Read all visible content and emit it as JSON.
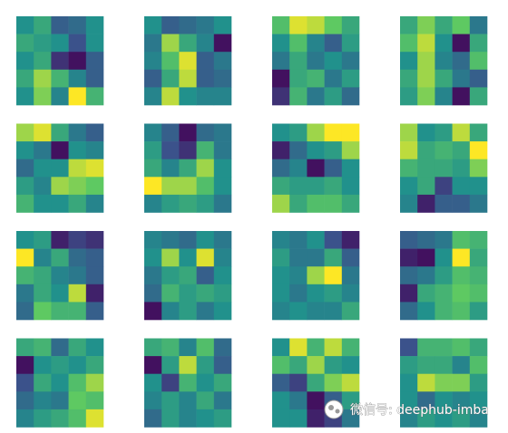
{
  "chart_data": [
    {
      "type": "heatmap",
      "colormap": "viridis",
      "clim": [
        0,
        1
      ],
      "values": [
        [
          0.5,
          0.6,
          0.3,
          0.35,
          0.5
        ],
        [
          0.6,
          0.55,
          0.5,
          0.25,
          0.5
        ],
        [
          0.5,
          0.6,
          0.15,
          0.05,
          0.3
        ],
        [
          0.6,
          0.85,
          0.65,
          0.45,
          0.3
        ],
        [
          0.5,
          0.8,
          0.45,
          1,
          0.65
        ]
      ]
    },
    {
      "type": "heatmap",
      "colormap": "viridis",
      "clim": [
        0,
        1
      ],
      "values": [
        [
          0.5,
          0.3,
          0.35,
          0.4,
          0.5
        ],
        [
          0.4,
          0.85,
          0.6,
          0.45,
          0.05
        ],
        [
          0.45,
          0.7,
          0.95,
          0.3,
          0.4
        ],
        [
          0.3,
          0.6,
          0.9,
          0.3,
          0.35
        ],
        [
          0.45,
          0.9,
          0.5,
          0.45,
          0.45
        ]
      ]
    },
    {
      "type": "heatmap",
      "colormap": "viridis",
      "clim": [
        0,
        1
      ],
      "values": [
        [
          0.7,
          0.95,
          0.9,
          0.75,
          0.6
        ],
        [
          0.5,
          0.7,
          0.45,
          0.3,
          0.55
        ],
        [
          0.4,
          0.6,
          0.4,
          0.5,
          0.4
        ],
        [
          0.05,
          0.6,
          0.65,
          0.4,
          0.55
        ],
        [
          0.15,
          0.65,
          0.4,
          0.55,
          0.35
        ]
      ]
    },
    {
      "type": "heatmap",
      "colormap": "viridis",
      "clim": [
        0,
        1
      ],
      "values": [
        [
          0.6,
          0.8,
          0.6,
          0.75,
          0.4
        ],
        [
          0.7,
          0.9,
          0.5,
          0.05,
          0.6
        ],
        [
          0.5,
          0.85,
          0.45,
          0.35,
          0.7
        ],
        [
          0.6,
          0.85,
          0.6,
          0.4,
          0.3
        ],
        [
          0.55,
          0.8,
          0.45,
          0.05,
          0.6
        ]
      ]
    },
    {
      "type": "heatmap",
      "colormap": "viridis",
      "clim": [
        0,
        1
      ],
      "values": [
        [
          0.85,
          0.95,
          0.6,
          0.4,
          0.3
        ],
        [
          0.5,
          0.4,
          0.05,
          0.5,
          0.45
        ],
        [
          0.35,
          0.5,
          0.5,
          0.9,
          0.95
        ],
        [
          0.55,
          0.45,
          0.85,
          0.8,
          0.75
        ],
        [
          0.65,
          0.5,
          0.5,
          0.6,
          0.45
        ]
      ]
    },
    {
      "type": "heatmap",
      "colormap": "viridis",
      "clim": [
        0,
        1
      ],
      "values": [
        [
          0.45,
          0.3,
          0.05,
          0.35,
          0.4
        ],
        [
          0.55,
          0.25,
          0.15,
          0.65,
          0.4
        ],
        [
          0.6,
          0.45,
          0.6,
          0.85,
          0.5
        ],
        [
          1,
          0.85,
          0.85,
          0.7,
          0.5
        ],
        [
          0.45,
          0.55,
          0.6,
          0.55,
          0.4
        ]
      ]
    },
    {
      "type": "heatmap",
      "colormap": "viridis",
      "clim": [
        0,
        1
      ],
      "values": [
        [
          0.5,
          0.55,
          0.85,
          1,
          1
        ],
        [
          0.1,
          0.35,
          0.5,
          0.55,
          0.85
        ],
        [
          0.35,
          0.45,
          0.05,
          0.3,
          0.5
        ],
        [
          0.6,
          0.55,
          0.55,
          0.6,
          0.5
        ],
        [
          0.85,
          0.6,
          0.7,
          0.7,
          0.6
        ]
      ]
    },
    {
      "type": "heatmap",
      "colormap": "viridis",
      "clim": [
        0,
        1
      ],
      "values": [
        [
          0.85,
          0.5,
          0.55,
          0.9,
          0.6
        ],
        [
          0.9,
          0.6,
          0.65,
          0.6,
          1
        ],
        [
          0.65,
          0.6,
          0.6,
          0.55,
          0.8
        ],
        [
          0.5,
          0.6,
          0.2,
          0.5,
          0.5
        ],
        [
          0.45,
          0.1,
          0.3,
          0.3,
          0.4
        ]
      ]
    },
    {
      "type": "heatmap",
      "colormap": "viridis",
      "clim": [
        0,
        1
      ],
      "values": [
        [
          0.5,
          0.55,
          0.1,
          0.2,
          0.15
        ],
        [
          1,
          0.45,
          0.6,
          0.35,
          0.3
        ],
        [
          0.65,
          0.6,
          0.45,
          0.4,
          0.3
        ],
        [
          0.4,
          0.6,
          0.5,
          0.9,
          0.1
        ],
        [
          0.35,
          0.75,
          0.65,
          0.65,
          0.3
        ]
      ]
    },
    {
      "type": "heatmap",
      "colormap": "viridis",
      "clim": [
        0,
        1
      ],
      "values": [
        [
          0.45,
          0.4,
          0.35,
          0.5,
          0.4
        ],
        [
          0.5,
          0.85,
          0.5,
          0.95,
          0.45
        ],
        [
          0.4,
          0.55,
          0.6,
          0.3,
          0.5
        ],
        [
          0.35,
          0.65,
          0.55,
          0.6,
          0.55
        ],
        [
          0.05,
          0.45,
          0.55,
          0.4,
          0.5
        ]
      ]
    },
    {
      "type": "heatmap",
      "colormap": "viridis",
      "clim": [
        0,
        1
      ],
      "values": [
        [
          0.45,
          0.4,
          0.5,
          0.25,
          0.1
        ],
        [
          0.55,
          0.4,
          0.4,
          0.6,
          0.3
        ],
        [
          0.5,
          0.45,
          0.85,
          1,
          0.4
        ],
        [
          0.5,
          0.4,
          0.5,
          0.55,
          0.45
        ],
        [
          0.45,
          0.5,
          0.45,
          0.45,
          0.6
        ]
      ]
    },
    {
      "type": "heatmap",
      "colormap": "viridis",
      "clim": [
        0,
        1
      ],
      "values": [
        [
          0.3,
          0.35,
          0.4,
          0.7,
          0.65
        ],
        [
          0.1,
          0.05,
          0.5,
          1,
          0.6
        ],
        [
          0.35,
          0.4,
          0.55,
          0.7,
          0.65
        ],
        [
          0.1,
          0.6,
          0.65,
          0.75,
          0.7
        ],
        [
          0.35,
          0.5,
          0.65,
          0.7,
          0.55
        ]
      ]
    },
    {
      "type": "heatmap",
      "colormap": "viridis",
      "clim": [
        0,
        1
      ],
      "values": [
        [
          0.6,
          0.65,
          0.35,
          0.6,
          0.5
        ],
        [
          0.05,
          0.5,
          0.55,
          0.5,
          0.6
        ],
        [
          0.25,
          0.6,
          0.5,
          0.7,
          0.85
        ],
        [
          0.35,
          0.45,
          0.4,
          0.75,
          0.7
        ],
        [
          0.45,
          0.55,
          0.6,
          0.7,
          0.95
        ]
      ]
    },
    {
      "type": "heatmap",
      "colormap": "viridis",
      "clim": [
        0,
        1
      ],
      "values": [
        [
          0.6,
          0.65,
          0.45,
          0.7,
          0.35
        ],
        [
          0.05,
          0.55,
          0.9,
          0.55,
          0.3
        ],
        [
          0.5,
          0.2,
          0.65,
          0.5,
          0.6
        ],
        [
          0.45,
          0.55,
          0.45,
          0.6,
          0.4
        ],
        [
          0.35,
          0.55,
          0.45,
          0.5,
          0.55
        ]
      ]
    },
    {
      "type": "heatmap",
      "colormap": "viridis",
      "clim": [
        0,
        1
      ],
      "values": [
        [
          0.5,
          0.95,
          0.65,
          0.9,
          0.65
        ],
        [
          0.7,
          0.6,
          0.85,
          0.55,
          0.5
        ],
        [
          0.3,
          0.2,
          0.6,
          0.8,
          0.9
        ],
        [
          0.5,
          0.4,
          0.05,
          0.3,
          0.55
        ],
        [
          0.5,
          0.5,
          0.1,
          0.2,
          0.4
        ]
      ]
    },
    {
      "type": "heatmap",
      "colormap": "viridis",
      "clim": [
        0,
        1
      ],
      "values": [
        [
          0.25,
          0.65,
          0.65,
          0.7,
          0.6
        ],
        [
          0.55,
          0.6,
          0.6,
          0.45,
          0.7
        ],
        [
          0.5,
          0.9,
          0.8,
          0.8,
          0.55
        ],
        [
          0.5,
          0.35,
          0.5,
          0.45,
          0.5
        ],
        [
          0.45,
          0.55,
          0.5,
          0.55,
          0.45
        ]
      ]
    }
  ],
  "watermark": "微信号: deephub-imba"
}
